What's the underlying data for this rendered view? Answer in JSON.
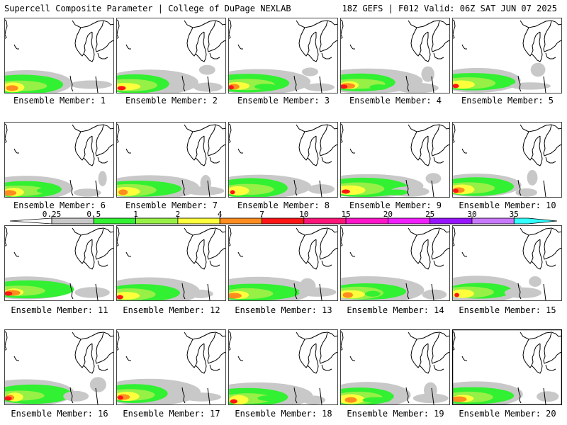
{
  "header": {
    "left_title": "Supercell Composite Parameter | College of DuPage NEXLAB",
    "right_title": "18Z GEFS | F012 Valid: 06Z SAT JUN 07 2025"
  },
  "colorbar": {
    "ticks": [
      "0.25",
      "0.5",
      "1",
      "2",
      "4",
      "7",
      "10",
      "15",
      "20",
      "25",
      "30",
      "35"
    ],
    "colors": [
      "#c8c8c8",
      "#32f032",
      "#96f046",
      "#ffff3c",
      "#ff8c1e",
      "#ff1414",
      "#ff1478",
      "#ff14c8",
      "#f01eff",
      "#9614ff",
      "#c878ff",
      "#32ffff"
    ]
  },
  "panels": [
    {
      "label": "Ensemble Member: 1"
    },
    {
      "label": "Ensemble Member: 2"
    },
    {
      "label": "Ensemble Member: 3"
    },
    {
      "label": "Ensemble Member: 4"
    },
    {
      "label": "Ensemble Member: 5"
    },
    {
      "label": "Ensemble Member: 6"
    },
    {
      "label": "Ensemble Member: 7"
    },
    {
      "label": "Ensemble Member: 8"
    },
    {
      "label": "Ensemble Member: 9"
    },
    {
      "label": "Ensemble Member: 10"
    },
    {
      "label": "Ensemble Member: 11"
    },
    {
      "label": "Ensemble Member: 12"
    },
    {
      "label": "Ensemble Member: 13"
    },
    {
      "label": "Ensemble Member: 14"
    },
    {
      "label": "Ensemble Member: 15"
    },
    {
      "label": "Ensemble Member: 16"
    },
    {
      "label": "Ensemble Member: 17"
    },
    {
      "label": "Ensemble Member: 18"
    },
    {
      "label": "Ensemble Member: 19"
    },
    {
      "label": "Ensemble Member: 20"
    }
  ]
}
